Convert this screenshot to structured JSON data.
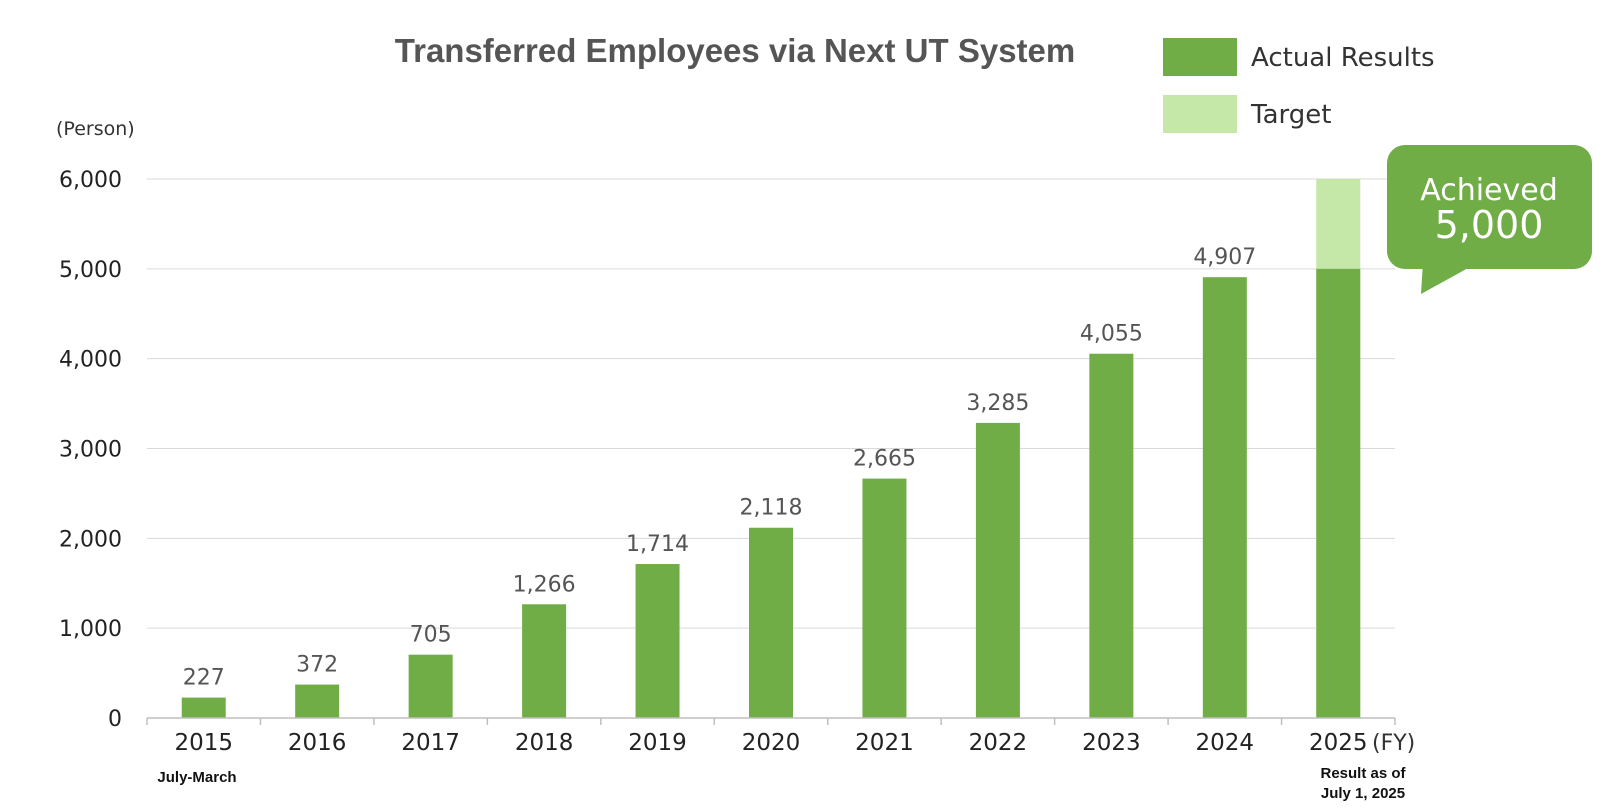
{
  "chart_data": {
    "type": "bar",
    "title": "Transferred Employees via Next UT System",
    "ylabel": "(Person)",
    "xunit": "(FY)",
    "ylim": [
      0,
      6000
    ],
    "yticks": [
      "0",
      "1,000",
      "2,000",
      "3,000",
      "4,000",
      "5,000",
      "6,000"
    ],
    "categories": [
      "2015",
      "2016",
      "2017",
      "2018",
      "2019",
      "2020",
      "2021",
      "2022",
      "2023",
      "2024",
      "2025"
    ],
    "category_notes": {
      "first": "July-March",
      "last_line1": "Result as of",
      "last_line2": "July 1, 2025"
    },
    "series": [
      {
        "name": "Actual Results",
        "color": "#70ad47",
        "values": [
          227,
          372,
          705,
          1266,
          1714,
          2118,
          2665,
          3285,
          4055,
          4907,
          5000
        ]
      },
      {
        "name": "Target",
        "color": "#c5e8a9",
        "values": [
          null,
          null,
          null,
          null,
          null,
          null,
          null,
          null,
          null,
          null,
          6000
        ]
      }
    ],
    "data_labels": [
      "227",
      "372",
      "705",
      "1,266",
      "1,714",
      "2,118",
      "2,665",
      "3,285",
      "4,055",
      "4,907",
      ""
    ],
    "grid": true,
    "legend_position": "top-right",
    "callout": {
      "line1": "Achieved",
      "line2": "5,000",
      "color": "#70ad47"
    }
  }
}
